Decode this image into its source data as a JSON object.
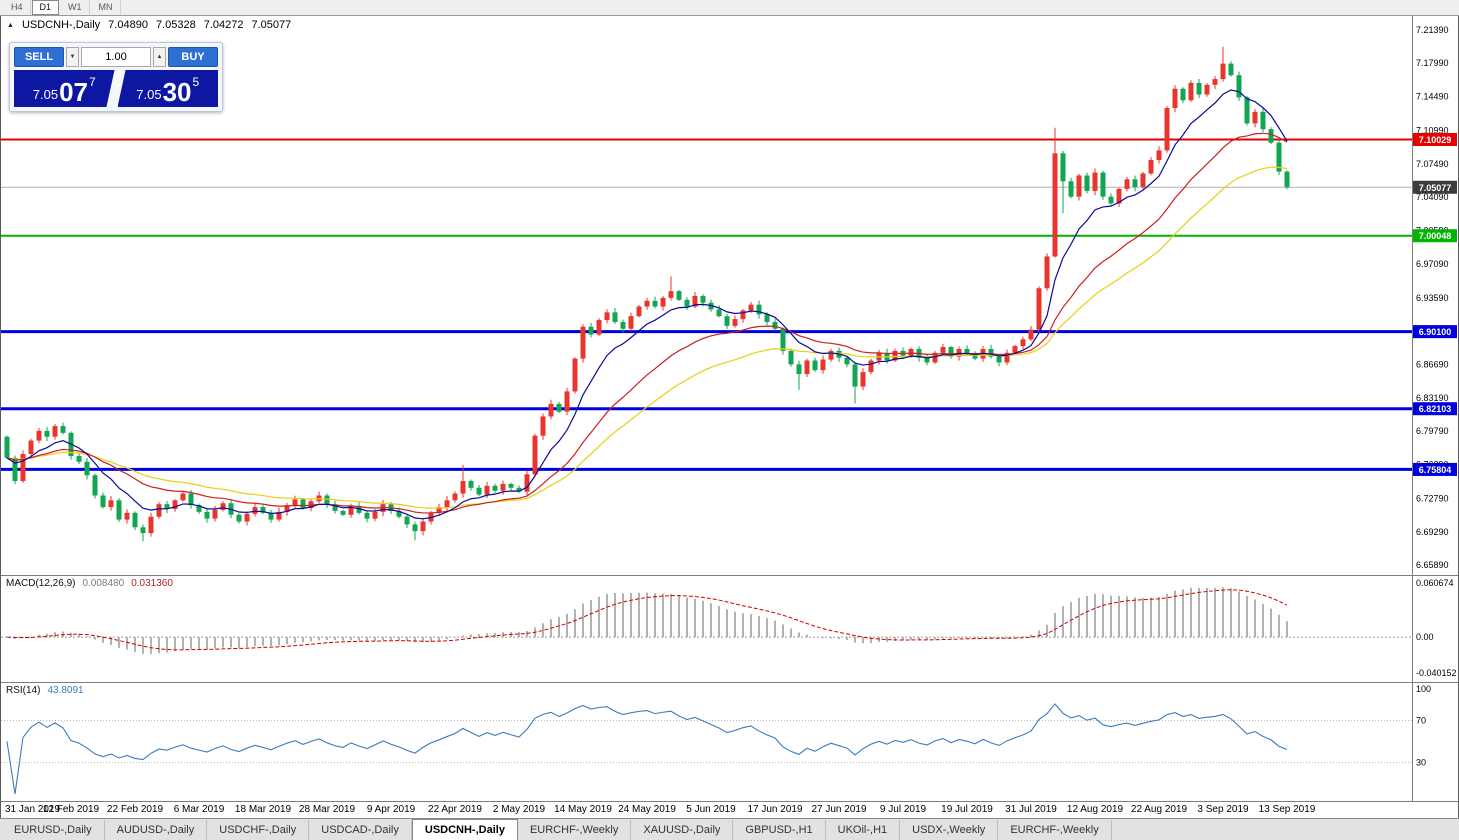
{
  "toolbar": {
    "timeframes": [
      {
        "label": "H4",
        "active": false
      },
      {
        "label": "D1",
        "active": true
      },
      {
        "label": "W1",
        "active": false
      },
      {
        "label": "MN",
        "active": false
      }
    ]
  },
  "chart_header": {
    "symbol_label": "USDCNH-,Daily",
    "open": "7.04890",
    "high": "7.05328",
    "low": "7.04272",
    "close": "7.05077"
  },
  "trade_widget": {
    "sell_label": "SELL",
    "buy_label": "BUY",
    "volume": "1.00",
    "sell_price_prefix": "7.05",
    "sell_price_main": "07",
    "sell_price_sup": "7",
    "buy_price_prefix": "7.05",
    "buy_price_main": "30",
    "buy_price_sup": "5"
  },
  "price_axis_ticks": [
    "7.21390",
    "7.17990",
    "7.14490",
    "7.10990",
    "7.07490",
    "7.04090",
    "7.00590",
    "6.97090",
    "6.93590",
    "6.90090",
    "6.86690",
    "6.83190",
    "6.79790",
    "6.76290",
    "6.72790",
    "6.69290",
    "6.65890"
  ],
  "current_price_label": "7.05077",
  "macd": {
    "label": "MACD(12,26,9)",
    "value_main": "0.008480",
    "value_signal": "0.031360",
    "axis_top": "0.060674",
    "axis_zero": "0.00",
    "axis_bottom": "-0.040152"
  },
  "rsi": {
    "label": "RSI(14)",
    "value": "43.8091",
    "axis_top": "100",
    "axis_upper": "70",
    "axis_lower": "30"
  },
  "date_axis": [
    "31 Jan 2019",
    "12 Feb 2019",
    "22 Feb 2019",
    "6 Mar 2019",
    "18 Mar 2019",
    "28 Mar 2019",
    "9 Apr 2019",
    "22 Apr 2019",
    "2 May 2019",
    "14 May 2019",
    "24 May 2019",
    "5 Jun 2019",
    "17 Jun 2019",
    "27 Jun 2019",
    "9 Jul 2019",
    "19 Jul 2019",
    "31 Jul 2019",
    "12 Aug 2019",
    "22 Aug 2019",
    "3 Sep 2019",
    "13 Sep 2019"
  ],
  "tabs": [
    {
      "label": "EURUSD-,Daily",
      "active": false
    },
    {
      "label": "AUDUSD-,Daily",
      "active": false
    },
    {
      "label": "USDCHF-,Daily",
      "active": false
    },
    {
      "label": "USDCAD-,Daily",
      "active": false
    },
    {
      "label": "USDCNH-,Daily",
      "active": true
    },
    {
      "label": "EURCHF-,Weekly",
      "active": false
    },
    {
      "label": "XAUUSD-,Daily",
      "active": false
    },
    {
      "label": "GBPUSD-,H1",
      "active": false
    },
    {
      "label": "UKOil-,H1",
      "active": false
    },
    {
      "label": "USDX-,Weekly",
      "active": false
    },
    {
      "label": "EURCHF-,Weekly",
      "active": false
    }
  ],
  "chart_data": {
    "type": "candlestick",
    "symbol": "USDCNH",
    "timeframe": "Daily",
    "title": "USDCNH-,Daily",
    "ylim": [
      6.6589,
      7.2139
    ],
    "x_labels": [
      "31 Jan 2019",
      "12 Feb 2019",
      "22 Feb 2019",
      "6 Mar 2019",
      "18 Mar 2019",
      "28 Mar 2019",
      "9 Apr 2019",
      "22 Apr 2019",
      "2 May 2019",
      "14 May 2019",
      "24 May 2019",
      "5 Jun 2019",
      "17 Jun 2019",
      "27 Jun 2019",
      "9 Jul 2019",
      "19 Jul 2019",
      "31 Jul 2019",
      "12 Aug 2019",
      "22 Aug 2019",
      "3 Sep 2019",
      "13 Sep 2019"
    ],
    "label_every_n_candles": 8,
    "first_open": 6.792,
    "open_rule": "open equals previous close",
    "closes": [
      6.77,
      6.746,
      6.774,
      6.788,
      6.798,
      6.792,
      6.803,
      6.796,
      6.772,
      6.766,
      6.752,
      6.731,
      6.719,
      6.726,
      6.706,
      6.713,
      6.698,
      6.692,
      6.709,
      6.722,
      6.717,
      6.726,
      6.733,
      6.721,
      6.714,
      6.707,
      6.716,
      6.723,
      6.711,
      6.704,
      6.712,
      6.719,
      6.713,
      6.706,
      6.714,
      6.721,
      6.727,
      6.718,
      6.725,
      6.731,
      6.722,
      6.715,
      6.711,
      6.72,
      6.713,
      6.707,
      6.714,
      6.722,
      6.715,
      6.709,
      6.701,
      6.694,
      6.704,
      6.713,
      6.719,
      6.726,
      6.733,
      6.746,
      6.739,
      6.732,
      6.741,
      6.736,
      6.743,
      6.739,
      6.735,
      6.753,
      6.793,
      6.813,
      6.826,
      6.818,
      6.839,
      6.873,
      6.906,
      6.898,
      6.913,
      6.921,
      6.911,
      6.904,
      6.917,
      6.927,
      6.933,
      6.927,
      6.936,
      6.943,
      6.934,
      6.927,
      6.938,
      6.931,
      6.924,
      6.917,
      6.907,
      6.914,
      6.923,
      6.929,
      6.919,
      6.911,
      6.904,
      6.881,
      6.867,
      6.857,
      6.871,
      6.861,
      6.872,
      6.881,
      6.874,
      6.867,
      6.844,
      6.859,
      6.871,
      6.879,
      6.871,
      6.881,
      6.876,
      6.883,
      6.874,
      6.869,
      6.879,
      6.885,
      6.875,
      6.883,
      6.879,
      6.873,
      6.883,
      6.875,
      6.869,
      6.879,
      6.886,
      6.893,
      6.903,
      6.946,
      6.979,
      7.086,
      7.057,
      7.041,
      7.063,
      7.047,
      7.066,
      7.041,
      7.034,
      7.049,
      7.059,
      7.051,
      7.065,
      7.079,
      7.089,
      7.133,
      7.153,
      7.141,
      7.159,
      7.147,
      7.157,
      7.163,
      7.179,
      7.167,
      7.144,
      7.117,
      7.129,
      7.111,
      7.097,
      7.067,
      7.0508
    ],
    "wick_high_boost": {
      "57": 0.013,
      "83": 0.012,
      "131": 0.022,
      "152": 0.013
    },
    "wick_low_boost": {
      "17": 0.007,
      "51": 0.007,
      "99": 0.012,
      "106": 0.016,
      "132": 0.03
    },
    "up_color": "#e8352e",
    "down_color": "#12a552",
    "overlays": [
      {
        "name": "ema-fast",
        "period": 8,
        "color": "#0a0a99"
      },
      {
        "name": "ema-mid",
        "period": 21,
        "color": "#cc2020"
      },
      {
        "name": "ema-slow",
        "period": 34,
        "color": "#e8d012"
      }
    ],
    "hlines": [
      {
        "value": 7.10029,
        "label": "7.10029",
        "color": "#e60000",
        "width": 2
      },
      {
        "value": 7.00048,
        "label": "7.00048",
        "color": "#00b400",
        "width": 2
      },
      {
        "value": 6.901,
        "label": "6.90100",
        "color": "#0000dc",
        "width": 3
      },
      {
        "value": 6.82103,
        "label": "6.82103",
        "color": "#0000dc",
        "width": 3
      },
      {
        "value": 6.75804,
        "label": "6.75804",
        "color": "#0000dc",
        "width": 3
      }
    ],
    "current_price": 7.05077,
    "indicators": [
      {
        "name": "MACD",
        "params": [
          12,
          26,
          9
        ],
        "display": "histogram+signal",
        "scale": [
          -0.040152,
          0.060674
        ],
        "current": [
          0.00848,
          0.03136
        ]
      },
      {
        "name": "RSI",
        "params": [
          14
        ],
        "scale": [
          0,
          100
        ],
        "levels": [
          30,
          70
        ],
        "current": 43.8091
      }
    ]
  }
}
